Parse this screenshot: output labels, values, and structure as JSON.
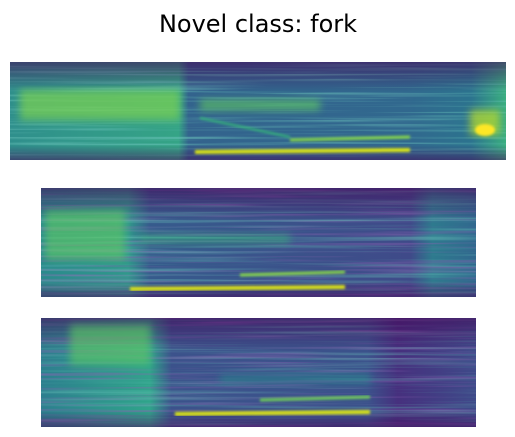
{
  "title": "Novel class: fork"
}
